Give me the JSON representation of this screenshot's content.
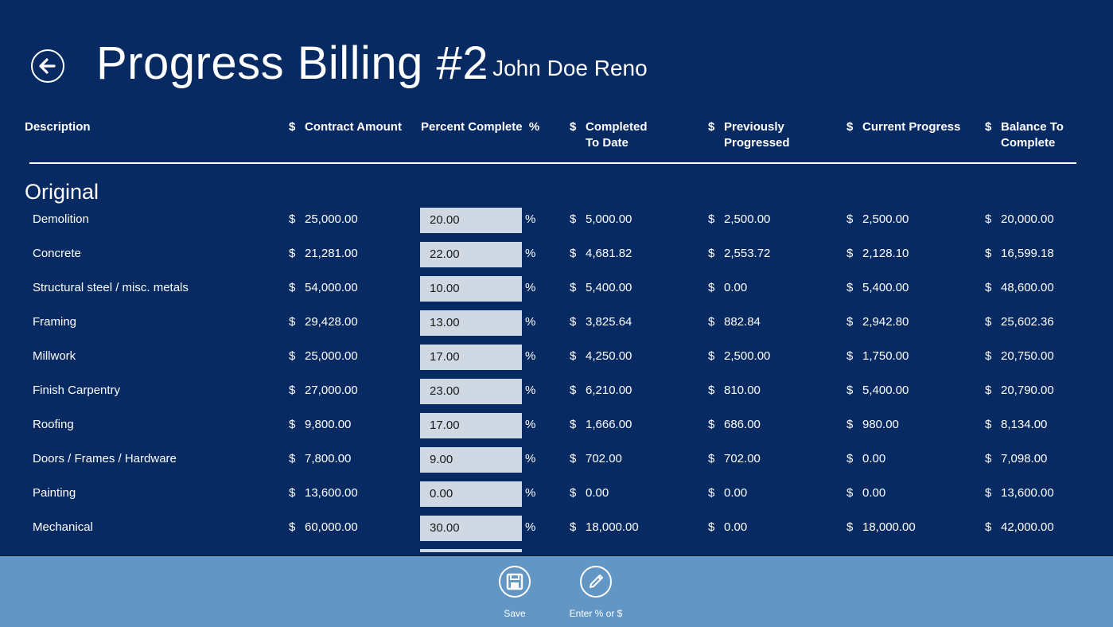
{
  "header": {
    "title": "Progress Billing #2",
    "subtitle": "- John Doe Reno",
    "back_icon": "back-arrow-icon"
  },
  "columns": [
    {
      "currency": "",
      "label": "Description"
    },
    {
      "currency": "$",
      "label": "Contract Amount"
    },
    {
      "currency": "",
      "label": "Percent Complete  %"
    },
    {
      "currency": "$",
      "label": "Completed\nTo Date"
    },
    {
      "currency": "$",
      "label": "Previously\nProgressed"
    },
    {
      "currency": "$",
      "label": "Current Progress"
    },
    {
      "currency": "$",
      "label": "Balance To\nComplete"
    }
  ],
  "section": {
    "title": "Original"
  },
  "currency_symbol": "$",
  "percent_symbol": "%",
  "rows": [
    {
      "description": "Demolition",
      "contract": "25,000.00",
      "percent": "20.00",
      "completed": "5,000.00",
      "previous": "2,500.00",
      "current": "2,500.00",
      "balance": "20,000.00"
    },
    {
      "description": "Concrete",
      "contract": "21,281.00",
      "percent": "22.00",
      "completed": "4,681.82",
      "previous": "2,553.72",
      "current": "2,128.10",
      "balance": "16,599.18"
    },
    {
      "description": "Structural steel / misc. metals",
      "contract": "54,000.00",
      "percent": "10.00",
      "completed": "5,400.00",
      "previous": "0.00",
      "current": "5,400.00",
      "balance": "48,600.00"
    },
    {
      "description": "Framing",
      "contract": "29,428.00",
      "percent": "13.00",
      "completed": "3,825.64",
      "previous": "882.84",
      "current": "2,942.80",
      "balance": "25,602.36"
    },
    {
      "description": "Millwork",
      "contract": "25,000.00",
      "percent": "17.00",
      "completed": "4,250.00",
      "previous": "2,500.00",
      "current": "1,750.00",
      "balance": "20,750.00"
    },
    {
      "description": "Finish Carpentry",
      "contract": "27,000.00",
      "percent": "23.00",
      "completed": "6,210.00",
      "previous": "810.00",
      "current": "5,400.00",
      "balance": "20,790.00"
    },
    {
      "description": "Roofing",
      "contract": "9,800.00",
      "percent": "17.00",
      "completed": "1,666.00",
      "previous": "686.00",
      "current": "980.00",
      "balance": "8,134.00"
    },
    {
      "description": "Doors / Frames / Hardware",
      "contract": "7,800.00",
      "percent": "9.00",
      "completed": "702.00",
      "previous": "702.00",
      "current": "0.00",
      "balance": "7,098.00"
    },
    {
      "description": "Painting",
      "contract": "13,600.00",
      "percent": "0.00",
      "completed": "0.00",
      "previous": "0.00",
      "current": "0.00",
      "balance": "13,600.00"
    },
    {
      "description": "Mechanical",
      "contract": "60,000.00",
      "percent": "30.00",
      "completed": "18,000.00",
      "previous": "0.00",
      "current": "18,000.00",
      "balance": "42,000.00"
    }
  ],
  "appbar": {
    "save_label": "Save",
    "save_icon": "save-icon",
    "enter_label": "Enter % or $",
    "enter_icon": "pencil-icon"
  },
  "colors": {
    "background": "#072a62",
    "appbar": "#6196c5",
    "input": "#cfd8e3",
    "text": "#ffffff"
  }
}
